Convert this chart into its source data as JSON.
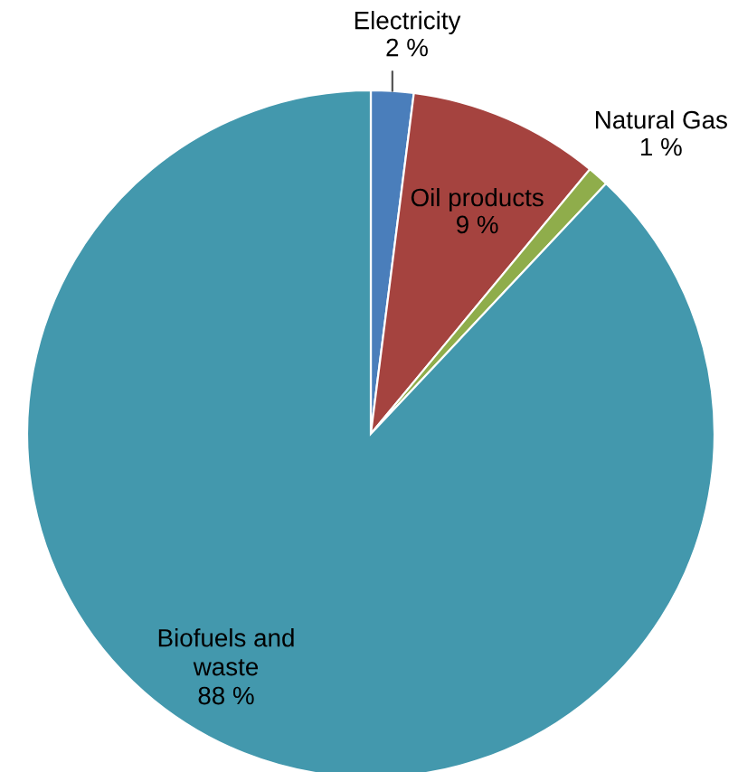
{
  "chart_data": {
    "type": "pie",
    "categories": [
      "Electricity",
      "Oil products",
      "Natural Gas",
      "Biofuels and waste"
    ],
    "values": [
      2,
      9,
      1,
      88
    ],
    "value_labels": [
      "2 %",
      "9 %",
      "1 %",
      "88 %"
    ],
    "colors": [
      "#4a7ebb",
      "#a5433f",
      "#8fad4b",
      "#4398ad"
    ]
  }
}
